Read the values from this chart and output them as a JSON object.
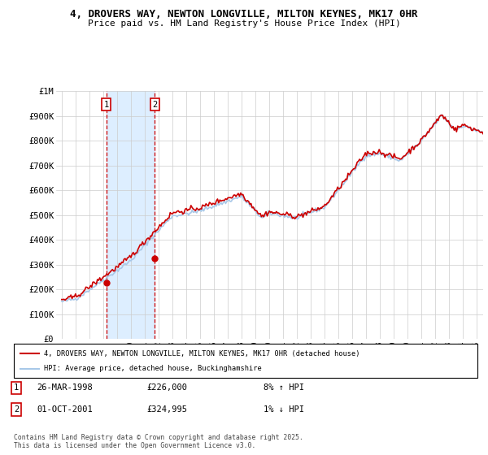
{
  "title_line1": "4, DROVERS WAY, NEWTON LONGVILLE, MILTON KEYNES, MK17 0HR",
  "title_line2": "Price paid vs. HM Land Registry's House Price Index (HPI)",
  "ylabel_ticks": [
    "£0",
    "£100K",
    "£200K",
    "£300K",
    "£400K",
    "£500K",
    "£600K",
    "£700K",
    "£800K",
    "£900K",
    "£1M"
  ],
  "ytick_values": [
    0,
    100000,
    200000,
    300000,
    400000,
    500000,
    600000,
    700000,
    800000,
    900000,
    1000000
  ],
  "xlim": [
    1994.6,
    2025.5
  ],
  "ylim": [
    0,
    1000000
  ],
  "hpi_color": "#a8c8e8",
  "price_color": "#cc0000",
  "highlight_color": "#ddeeff",
  "transaction1": {
    "label": "1",
    "date": "26-MAR-1998",
    "price": "£226,000",
    "hpi": "8% ↑ HPI",
    "year": 1998.23,
    "value": 226000
  },
  "transaction2": {
    "label": "2",
    "date": "01-OCT-2001",
    "price": "£324,995",
    "hpi": "1% ↓ HPI",
    "year": 2001.75,
    "value": 324995
  },
  "legend_line1": "4, DROVERS WAY, NEWTON LONGVILLE, MILTON KEYNES, MK17 0HR (detached house)",
  "legend_line2": "HPI: Average price, detached house, Buckinghamshire",
  "footer": "Contains HM Land Registry data © Crown copyright and database right 2025.\nThis data is licensed under the Open Government Licence v3.0.",
  "xticks": [
    1995,
    1996,
    1997,
    1998,
    1999,
    2000,
    2001,
    2002,
    2003,
    2004,
    2005,
    2006,
    2007,
    2008,
    2009,
    2010,
    2011,
    2012,
    2013,
    2014,
    2015,
    2016,
    2017,
    2018,
    2019,
    2020,
    2021,
    2022,
    2023,
    2024,
    2025
  ]
}
